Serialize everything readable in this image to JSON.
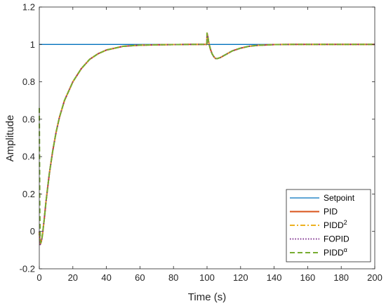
{
  "chart_data": {
    "type": "line",
    "title": "",
    "xlabel": "Time (s)",
    "ylabel": "Amplitude",
    "xlim": [
      0,
      200
    ],
    "ylim": [
      -0.2,
      1.2
    ],
    "xticks": [
      "0",
      "20",
      "40",
      "60",
      "80",
      "100",
      "120",
      "140",
      "160",
      "180",
      "200"
    ],
    "yticks": [
      "-0.2",
      "0",
      "0.2",
      "0.4",
      "0.6",
      "0.8",
      "1",
      "1.2"
    ],
    "grid": false,
    "legend_position": "bottom-right",
    "series": [
      {
        "name": "Setpoint",
        "label_main": "Setpoint",
        "label_sup": "",
        "color": "#0072BD",
        "dash": "solid",
        "x": [
          0,
          200
        ],
        "y": [
          1,
          1
        ]
      },
      {
        "name": "PID",
        "label_main": "PID",
        "label_sup": "",
        "color": "#D95319",
        "dash": "solid",
        "x": [
          0,
          0.5,
          1,
          1.5,
          2,
          3,
          4,
          6,
          8,
          10,
          12,
          15,
          20,
          25,
          30,
          35,
          40,
          45,
          50,
          55,
          60,
          70,
          80,
          90,
          99.9,
          100,
          100.5,
          101,
          102,
          103,
          104,
          105,
          106,
          108,
          110,
          112,
          115,
          120,
          125,
          130,
          140,
          150,
          160,
          170,
          180,
          190,
          200
        ],
        "y": [
          0,
          -0.07,
          -0.06,
          -0.04,
          -0.01,
          0.07,
          0.16,
          0.31,
          0.43,
          0.53,
          0.61,
          0.7,
          0.8,
          0.87,
          0.92,
          0.95,
          0.97,
          0.98,
          0.99,
          0.993,
          0.996,
          0.998,
          0.999,
          1.0,
          1.0,
          1.06,
          1.04,
          1.01,
          0.975,
          0.95,
          0.935,
          0.925,
          0.924,
          0.93,
          0.94,
          0.95,
          0.965,
          0.98,
          0.99,
          0.995,
          0.999,
          1.0,
          1.0,
          1.0,
          1.0,
          1.0,
          1.0
        ]
      },
      {
        "name": "PIDD2",
        "label_main": "PIDD",
        "label_sup": "2",
        "color": "#EDB120",
        "dash": "dashdot",
        "x": [
          0,
          0.5,
          1,
          1.5,
          2,
          3,
          4,
          6,
          8,
          10,
          12,
          15,
          20,
          25,
          30,
          35,
          40,
          45,
          50,
          55,
          60,
          70,
          80,
          90,
          99.9,
          100,
          100.5,
          101,
          102,
          103,
          104,
          105,
          106,
          108,
          110,
          112,
          115,
          120,
          125,
          130,
          140,
          150,
          160,
          170,
          180,
          190,
          200
        ],
        "y": [
          0,
          -0.07,
          -0.06,
          -0.04,
          -0.01,
          0.07,
          0.16,
          0.31,
          0.43,
          0.53,
          0.61,
          0.7,
          0.8,
          0.87,
          0.92,
          0.95,
          0.97,
          0.98,
          0.99,
          0.993,
          0.996,
          0.998,
          0.999,
          1.0,
          1.0,
          1.06,
          1.04,
          1.01,
          0.975,
          0.95,
          0.935,
          0.925,
          0.924,
          0.93,
          0.94,
          0.95,
          0.965,
          0.98,
          0.99,
          0.995,
          0.999,
          1.0,
          1.0,
          1.0,
          1.0,
          1.0,
          1.0
        ]
      },
      {
        "name": "FOPID",
        "label_main": "FOPID",
        "label_sup": "",
        "color": "#7E2F8E",
        "dash": "dotted",
        "x": [
          0,
          0.5,
          1,
          1.5,
          2,
          3,
          4,
          6,
          8,
          10,
          12,
          15,
          20,
          25,
          30,
          35,
          40,
          45,
          50,
          55,
          60,
          70,
          80,
          90,
          99.9,
          100,
          100.5,
          101,
          102,
          103,
          104,
          105,
          106,
          108,
          110,
          112,
          115,
          120,
          125,
          130,
          140,
          150,
          160,
          170,
          180,
          190,
          200
        ],
        "y": [
          0,
          -0.07,
          -0.06,
          -0.04,
          -0.01,
          0.07,
          0.16,
          0.31,
          0.43,
          0.53,
          0.61,
          0.7,
          0.8,
          0.87,
          0.92,
          0.95,
          0.97,
          0.98,
          0.99,
          0.993,
          0.996,
          0.998,
          0.999,
          1.0,
          1.0,
          1.06,
          1.04,
          1.01,
          0.975,
          0.95,
          0.935,
          0.925,
          0.924,
          0.93,
          0.94,
          0.95,
          0.965,
          0.98,
          0.99,
          0.995,
          0.999,
          1.0,
          1.0,
          1.0,
          1.0,
          1.0,
          1.0
        ]
      },
      {
        "name": "PIDDalpha",
        "label_main": "PIDD",
        "label_sup": "α",
        "color": "#77AC30",
        "dash": "dashed",
        "x": [
          0,
          0.3,
          0.6,
          1,
          1.5,
          2,
          3,
          4,
          6,
          8,
          10,
          12,
          15,
          20,
          25,
          30,
          35,
          40,
          45,
          50,
          55,
          60,
          70,
          80,
          90,
          99.9,
          100,
          100.5,
          101,
          102,
          103,
          104,
          105,
          106,
          108,
          110,
          112,
          115,
          120,
          125,
          130,
          140,
          150,
          160,
          170,
          180,
          190,
          200
        ],
        "y": [
          0.66,
          0.1,
          -0.05,
          -0.06,
          -0.04,
          -0.01,
          0.07,
          0.16,
          0.31,
          0.43,
          0.53,
          0.61,
          0.7,
          0.8,
          0.87,
          0.92,
          0.95,
          0.97,
          0.98,
          0.99,
          0.993,
          0.996,
          0.998,
          0.999,
          1.0,
          1.0,
          1.06,
          1.04,
          1.01,
          0.975,
          0.95,
          0.935,
          0.925,
          0.924,
          0.93,
          0.94,
          0.95,
          0.965,
          0.98,
          0.99,
          0.995,
          0.999,
          1.0,
          1.0,
          1.0,
          1.0,
          1.0,
          1.0
        ]
      }
    ]
  }
}
